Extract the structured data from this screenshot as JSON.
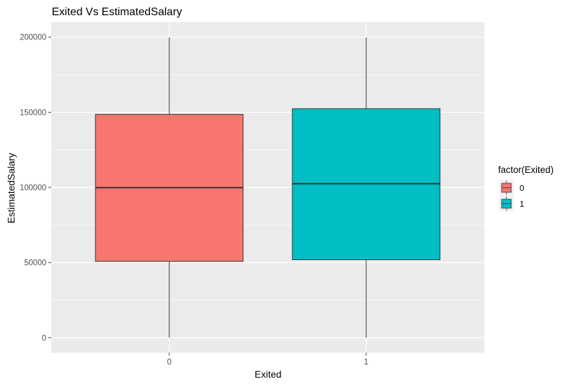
{
  "chart_data": {
    "type": "boxplot",
    "title": "Exited Vs EstimatedSalary",
    "xlabel": "Exited",
    "ylabel": "EstimatedSalary",
    "categories": [
      "0",
      "1"
    ],
    "ylim": [
      -10000,
      210000
    ],
    "y_ticks": [
      0,
      50000,
      100000,
      150000,
      200000
    ],
    "y_tick_labels": [
      "0",
      "50000",
      "100000",
      "150000",
      "200000"
    ],
    "boxes": [
      {
        "category": "0",
        "min": 0,
        "q1": 50800,
        "median": 99800,
        "q3": 148600,
        "max": 199800,
        "fill": "#F8766D"
      },
      {
        "category": "1",
        "min": 0,
        "q1": 51900,
        "median": 102500,
        "q3": 152400,
        "max": 199800,
        "fill": "#00BFC4"
      }
    ],
    "legend": {
      "title": "factor(Exited)",
      "position": "right",
      "items": [
        {
          "label": "0",
          "color": "#F8766D"
        },
        {
          "label": "1",
          "color": "#00BFC4"
        }
      ]
    },
    "grid": true,
    "panel_background": "#EBEBEB",
    "grid_color": "#FFFFFF"
  }
}
